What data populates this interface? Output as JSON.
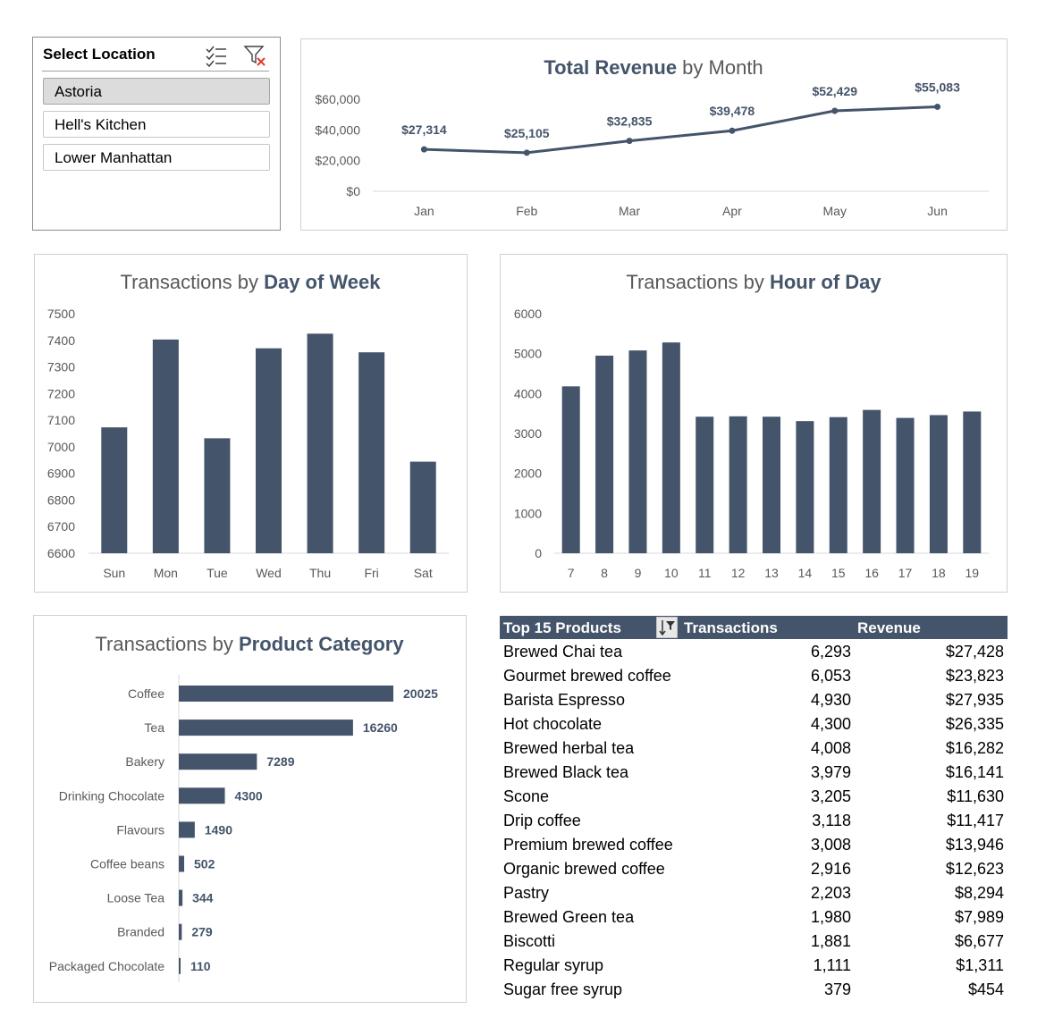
{
  "slicer": {
    "title": "Select Location",
    "icons": [
      "multi-select-icon",
      "clear-filter-icon"
    ],
    "items": [
      {
        "label": "Astoria",
        "selected": true
      },
      {
        "label": "Hell's Kitchen",
        "selected": false
      },
      {
        "label": "Lower Manhattan",
        "selected": false
      }
    ]
  },
  "colors": {
    "bar": "#44546a",
    "axis_text": "#595959",
    "title_text": "#44546a"
  },
  "chart_data": [
    {
      "id": "revenue",
      "type": "line",
      "title_bold": "Total Revenue",
      "title_rest": " by Month",
      "categories": [
        "Jan",
        "Feb",
        "Mar",
        "Apr",
        "May",
        "Jun"
      ],
      "values": [
        27314,
        25105,
        32835,
        39478,
        52429,
        55083
      ],
      "labels": [
        "$27,314",
        "$25,105",
        "$32,835",
        "$39,478",
        "$52,429",
        "$55,083"
      ],
      "ylim": [
        0,
        60000
      ],
      "yticks": [
        "$0",
        "$20,000",
        "$40,000",
        "$60,000"
      ],
      "ytick_values": [
        0,
        20000,
        40000,
        60000
      ]
    },
    {
      "id": "dow",
      "type": "bar",
      "title_rest": "Transactions by ",
      "title_bold": "Day of Week",
      "categories": [
        "Sun",
        "Mon",
        "Tue",
        "Wed",
        "Thu",
        "Fri",
        "Sat"
      ],
      "values": [
        7073,
        7403,
        7032,
        7370,
        7425,
        7355,
        6944
      ],
      "ylim": [
        6600,
        7500
      ],
      "yticks": [
        "6600",
        "6700",
        "6800",
        "6900",
        "7000",
        "7100",
        "7200",
        "7300",
        "7400",
        "7500"
      ],
      "ytick_values": [
        6600,
        6700,
        6800,
        6900,
        7000,
        7100,
        7200,
        7300,
        7400,
        7500
      ]
    },
    {
      "id": "hour",
      "type": "bar",
      "title_rest": "Transactions by ",
      "title_bold": "Hour of Day",
      "categories": [
        "7",
        "8",
        "9",
        "10",
        "11",
        "12",
        "13",
        "14",
        "15",
        "16",
        "17",
        "18",
        "19"
      ],
      "values": [
        4180,
        4950,
        5080,
        5280,
        3420,
        3430,
        3420,
        3310,
        3410,
        3590,
        3390,
        3460,
        3550
      ],
      "ylim": [
        0,
        6000
      ],
      "yticks": [
        "0",
        "1000",
        "2000",
        "3000",
        "4000",
        "5000",
        "6000"
      ],
      "ytick_values": [
        0,
        1000,
        2000,
        3000,
        4000,
        5000,
        6000
      ]
    },
    {
      "id": "category",
      "type": "bar",
      "orientation": "horizontal",
      "title_rest": "Transactions by ",
      "title_bold": "Product Category",
      "categories": [
        "Coffee",
        "Tea",
        "Bakery",
        "Drinking Chocolate",
        "Flavours",
        "Coffee beans",
        "Loose Tea",
        "Branded",
        "Packaged Chocolate"
      ],
      "values": [
        20025,
        16260,
        7289,
        4300,
        1490,
        502,
        344,
        279,
        110
      ],
      "labels": [
        "20025",
        "16260",
        "7289",
        "4300",
        "1490",
        "502",
        "344",
        "279",
        "110"
      ]
    },
    {
      "id": "top15",
      "type": "table",
      "columns": [
        "Top 15 Products",
        "Transactions",
        "Revenue"
      ],
      "rows": [
        [
          "Brewed Chai tea",
          "6,293",
          "$27,428"
        ],
        [
          "Gourmet brewed coffee",
          "6,053",
          "$23,823"
        ],
        [
          "Barista Espresso",
          "4,930",
          "$27,935"
        ],
        [
          "Hot chocolate",
          "4,300",
          "$26,335"
        ],
        [
          "Brewed herbal tea",
          "4,008",
          "$16,282"
        ],
        [
          "Brewed Black tea",
          "3,979",
          "$16,141"
        ],
        [
          "Scone",
          "3,205",
          "$11,630"
        ],
        [
          "Drip coffee",
          "3,118",
          "$11,417"
        ],
        [
          "Premium brewed coffee",
          "3,008",
          "$13,946"
        ],
        [
          "Organic brewed coffee",
          "2,916",
          "$12,623"
        ],
        [
          "Pastry",
          "2,203",
          "$8,294"
        ],
        [
          "Brewed Green tea",
          "1,980",
          "$7,989"
        ],
        [
          "Biscotti",
          "1,881",
          "$6,677"
        ],
        [
          "Regular syrup",
          "1,111",
          "$1,311"
        ],
        [
          "Sugar free syrup",
          "379",
          "$454"
        ]
      ]
    }
  ]
}
